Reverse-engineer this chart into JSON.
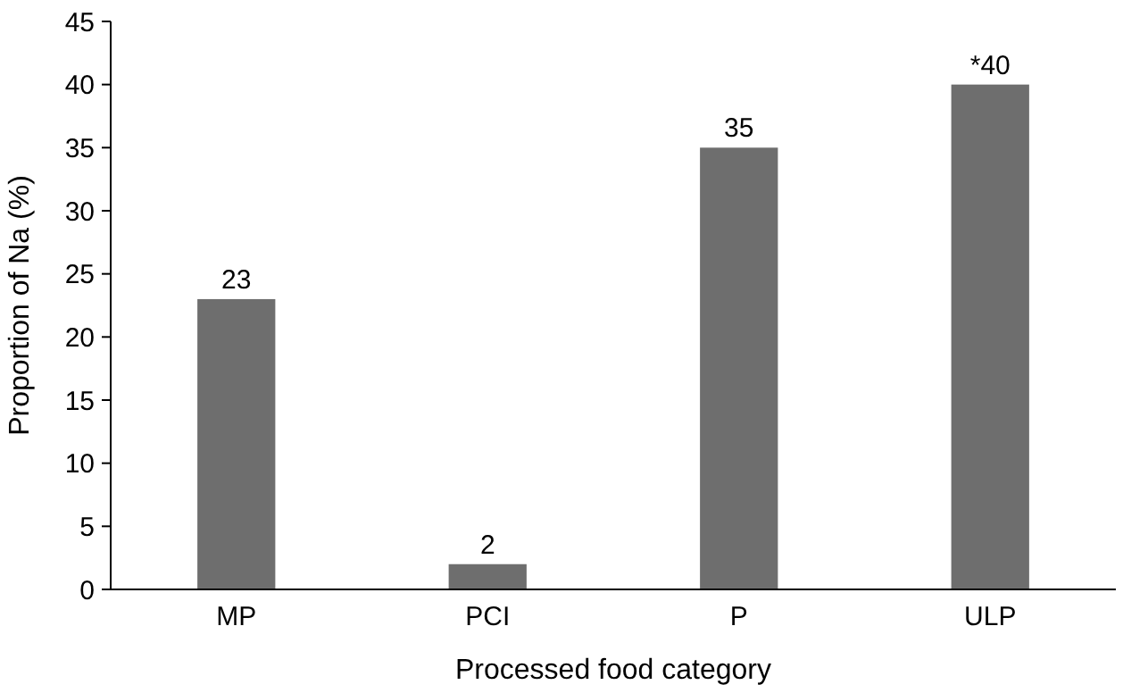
{
  "chart_data": {
    "type": "bar",
    "xlabel": "Processed food category",
    "ylabel": "Proportion of Na (%)",
    "categories": [
      "MP",
      "PCI",
      "P",
      "ULP"
    ],
    "values": [
      23,
      2,
      35,
      40
    ],
    "value_labels": [
      "23",
      "2",
      "35",
      "*40"
    ],
    "color": "#6e6e6e",
    "ylim": [
      0,
      45
    ],
    "yticks": [
      0,
      5,
      10,
      15,
      20,
      25,
      30,
      35,
      40,
      45
    ],
    "grid": false
  }
}
